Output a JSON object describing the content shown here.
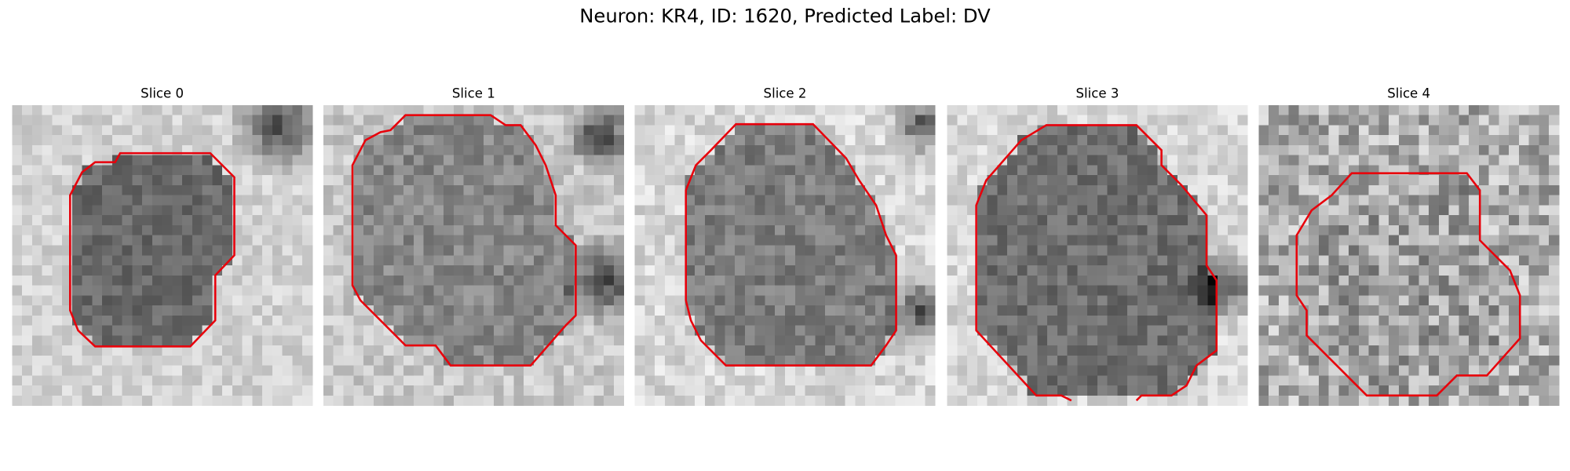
{
  "title": "Neuron: KR4, ID: 1620, Predicted Label: DV",
  "panels": [
    {
      "title": "Slice 0"
    },
    {
      "title": "Slice 1"
    },
    {
      "title": "Slice 2"
    },
    {
      "title": "Slice 3"
    },
    {
      "title": "Slice 4"
    }
  ]
}
